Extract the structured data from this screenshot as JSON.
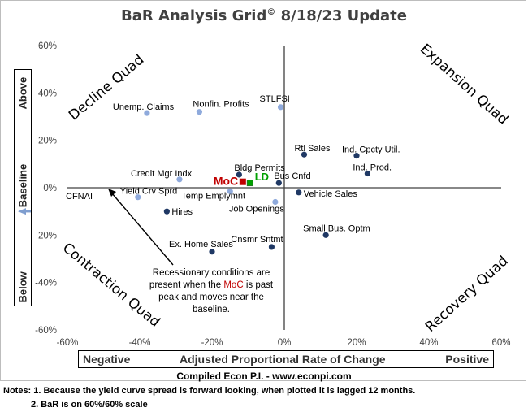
{
  "title": {
    "main": "BaR Analysis Grid",
    "symbol": "©",
    "suffix": " 8/18/23 Update"
  },
  "y_axis_label": {
    "above": "Above",
    "baseline": "Baseline",
    "below": "Below"
  },
  "x_axis_label": {
    "negative": "Negative",
    "middle": "Adjusted Proportional Rate of Change",
    "positive": "Positive"
  },
  "credit": "Compiled Econ P.I. - www.econpi.com",
  "notes": [
    "Notes: 1. Because the yield curve spread is forward looking, when plotted it is lagged 12 months.",
    "2. BaR is on 60%/60% scale"
  ],
  "quadrants": {
    "decline": "Decline Quad",
    "expansion": "Expansion Quad",
    "contraction": "Contraction Quad",
    "recovery": "Recovery Quad"
  },
  "annotation": {
    "line1": "Recessionary conditions are",
    "line2_pre": "present when the ",
    "line2_moc": "MoC",
    "line2_post": " is past",
    "line3": "peak and moves near the",
    "line4": "baseline."
  },
  "colors": {
    "decline": "#ffd966",
    "expansion": "#a9d9b8",
    "contraction": "#e08080",
    "recovery": "#6fa8dc",
    "dark_point": "#1f3864",
    "light_point": "#8faadc",
    "moc": "#c00000",
    "ld": "#00a000"
  },
  "chart_data": {
    "type": "scatter",
    "xlim": [
      -0.6,
      0.6
    ],
    "ylim": [
      -0.6,
      0.6
    ],
    "x_ticks": [
      "-60%",
      "-40%",
      "-20%",
      "0%",
      "20%",
      "40%",
      "60%"
    ],
    "y_ticks": [
      "60%",
      "40%",
      "20%",
      "0%",
      "-20%",
      "-40%",
      "-60%"
    ],
    "grid": false,
    "points": [
      {
        "label": "Unemp. Claims",
        "x": -0.38,
        "y": 0.315,
        "style": "light"
      },
      {
        "label": "Nonfin. Profits",
        "x": -0.235,
        "y": 0.32,
        "style": "light"
      },
      {
        "label": "STLFSI",
        "x": -0.01,
        "y": 0.34,
        "style": "light"
      },
      {
        "label": "Rtl Sales",
        "x": 0.055,
        "y": 0.14,
        "style": "dark"
      },
      {
        "label": "Ind. Cpcty Util.",
        "x": 0.2,
        "y": 0.135,
        "style": "dark"
      },
      {
        "label": "Ind. Prod.",
        "x": 0.23,
        "y": 0.06,
        "style": "dark"
      },
      {
        "label": "Credit Mgr Indx",
        "x": -0.29,
        "y": 0.035,
        "style": "light"
      },
      {
        "label": "Bldg Permits",
        "x": -0.125,
        "y": 0.055,
        "style": "dark"
      },
      {
        "label": "Bus Cnfd",
        "x": -0.015,
        "y": 0.02,
        "style": "dark"
      },
      {
        "label": "Yield Crv Sprd",
        "x": -0.405,
        "y": -0.04,
        "style": "light"
      },
      {
        "label": "Temp Emplymnt",
        "x": -0.15,
        "y": -0.015,
        "style": "light"
      },
      {
        "label": "Vehicle Sales",
        "x": 0.04,
        "y": -0.02,
        "style": "dark"
      },
      {
        "label": "Job Openings",
        "x": -0.025,
        "y": -0.06,
        "style": "light"
      },
      {
        "label": "Hires",
        "x": -0.325,
        "y": -0.1,
        "style": "dark"
      },
      {
        "label": "Small Bus. Optm",
        "x": 0.115,
        "y": -0.2,
        "style": "dark"
      },
      {
        "label": "Cnsmr Sntmt",
        "x": -0.035,
        "y": -0.25,
        "style": "dark"
      },
      {
        "label": "Ex. Home Sales",
        "x": -0.2,
        "y": -0.27,
        "style": "dark"
      },
      {
        "label": "MoC",
        "x": -0.115,
        "y": 0.025,
        "style": "moc"
      },
      {
        "label": "LD",
        "x": -0.095,
        "y": 0.02,
        "style": "ld"
      }
    ],
    "off_chart": {
      "label": "CFNAI",
      "y": -0.1
    }
  }
}
